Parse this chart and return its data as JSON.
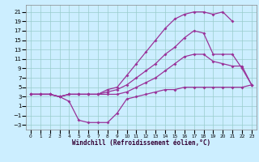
{
  "xlabel": "Windchill (Refroidissement éolien,°C)",
  "background_color": "#cceeff",
  "grid_color": "#99cccc",
  "line_color": "#993399",
  "xlim": [
    -0.5,
    23.5
  ],
  "ylim": [
    -4,
    22.5
  ],
  "xticks": [
    0,
    1,
    2,
    3,
    4,
    5,
    6,
    7,
    8,
    9,
    10,
    11,
    12,
    13,
    14,
    15,
    16,
    17,
    18,
    19,
    20,
    21,
    22,
    23
  ],
  "yticks": [
    -3,
    -1,
    1,
    3,
    5,
    7,
    9,
    11,
    13,
    15,
    17,
    19,
    21
  ],
  "line1_x": [
    0,
    1,
    2,
    3,
    4,
    5,
    6,
    7,
    8,
    9,
    10,
    11,
    12,
    13,
    14,
    15,
    16,
    17,
    18,
    19,
    20,
    21,
    22
  ],
  "line1_y": [
    3.5,
    3.5,
    3.5,
    3.0,
    3.5,
    3.5,
    3.5,
    3.5,
    4.5,
    5.0,
    7.5,
    10.0,
    12.5,
    15.0,
    17.5,
    19.5,
    20.5,
    21.0,
    21.0,
    20.5,
    21.0,
    19.0,
    null
  ],
  "line2_x": [
    0,
    1,
    2,
    3,
    4,
    5,
    6,
    7,
    8,
    9,
    10,
    11,
    12,
    13,
    14,
    15,
    16,
    17,
    18,
    19,
    20,
    21,
    22,
    23
  ],
  "line2_y": [
    3.5,
    3.5,
    3.5,
    3.0,
    3.5,
    3.5,
    3.5,
    3.5,
    4.0,
    4.5,
    5.5,
    7.0,
    8.5,
    10.0,
    12.0,
    13.5,
    15.5,
    17.0,
    16.5,
    12.0,
    12.0,
    12.0,
    9.0,
    5.5
  ],
  "line3_x": [
    0,
    1,
    2,
    3,
    4,
    5,
    6,
    7,
    8,
    9,
    10,
    11,
    12,
    13,
    14,
    15,
    16,
    17,
    18,
    19,
    20,
    21,
    22,
    23
  ],
  "line3_y": [
    3.5,
    3.5,
    3.5,
    3.0,
    3.5,
    3.5,
    3.5,
    3.5,
    3.5,
    3.5,
    4.0,
    5.0,
    6.0,
    7.0,
    8.5,
    10.0,
    11.5,
    12.0,
    12.0,
    10.5,
    10.0,
    9.5,
    9.5,
    5.5
  ],
  "line4_x": [
    0,
    1,
    2,
    3,
    4,
    5,
    6,
    7,
    8,
    9,
    10,
    11,
    12,
    13,
    14,
    15,
    16,
    17,
    18,
    19,
    20,
    21,
    22,
    23
  ],
  "line4_y": [
    3.5,
    3.5,
    3.5,
    3.0,
    2.0,
    -2.0,
    -2.5,
    -2.5,
    -2.5,
    -0.5,
    2.5,
    3.0,
    3.5,
    4.0,
    4.5,
    4.5,
    5.0,
    5.0,
    5.0,
    5.0,
    5.0,
    5.0,
    5.0,
    5.5
  ]
}
